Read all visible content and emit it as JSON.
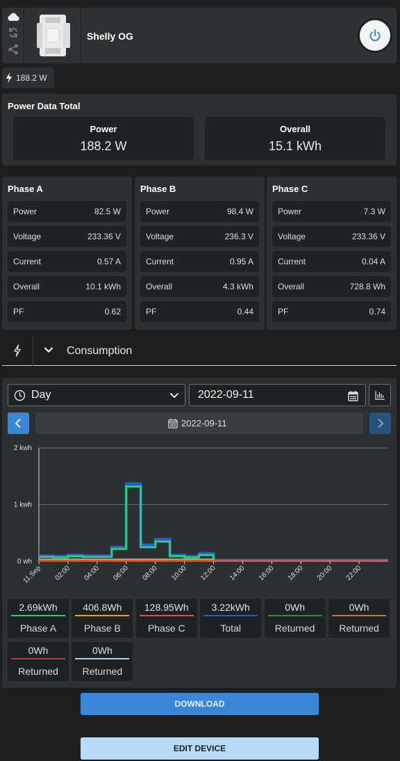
{
  "device": {
    "name": "Shelly OG",
    "power_badge": "188.2 W"
  },
  "total": {
    "title": "Power Data Total",
    "power_label": "Power",
    "power_value": "188.2 W",
    "overall_label": "Overall",
    "overall_value": "15.1 kWh"
  },
  "phases": [
    {
      "title": "Phase A",
      "rows": [
        {
          "label": "Power",
          "value": "82.5 W"
        },
        {
          "label": "Voltage",
          "value": "233.36 V"
        },
        {
          "label": "Current",
          "value": "0.57 A"
        },
        {
          "label": "Overall",
          "value": "10.1 kWh"
        },
        {
          "label": "PF",
          "value": "0.62"
        }
      ]
    },
    {
      "title": "Phase B",
      "rows": [
        {
          "label": "Power",
          "value": "98.4 W"
        },
        {
          "label": "Voltage",
          "value": "236.3 V"
        },
        {
          "label": "Current",
          "value": "0.95 A"
        },
        {
          "label": "Overall",
          "value": "4.3 kWh"
        },
        {
          "label": "PF",
          "value": "0.44"
        }
      ]
    },
    {
      "title": "Phase C",
      "rows": [
        {
          "label": "Power",
          "value": "7.3 W"
        },
        {
          "label": "Voltage",
          "value": "233.36 V"
        },
        {
          "label": "Current",
          "value": "0.04 A"
        },
        {
          "label": "Overall",
          "value": "728.8 Wh"
        },
        {
          "label": "PF",
          "value": "0.74"
        }
      ]
    }
  ],
  "consumption": {
    "label": "Consumption",
    "period_select": "Day",
    "date_input": "2022-09-11",
    "nav_date": "2022-09-11"
  },
  "colors": {
    "phase_a": "#2ecc71",
    "phase_b": "#f0a030",
    "phase_c": "#e74c3c",
    "total": "#1e5fd8",
    "returned_1": "#2c8c4a",
    "returned_2": "#c07a3a",
    "returned_3": "#b03a3a",
    "returned_4": "#a8d0f0",
    "accent": "#3a86d8"
  },
  "chart_data": {
    "type": "line",
    "y_tick_labels": [
      "2 kwh",
      "1 kwh",
      "0 wh"
    ],
    "x_tick_labels": [
      "11.Sep",
      "02:00",
      "04:00",
      "06:00",
      "08:00",
      "10:00",
      "12:00",
      "14:00",
      "16:00",
      "18:00",
      "20:00",
      "22:00"
    ],
    "ylim": [
      0,
      2
    ],
    "xlim": [
      0,
      24
    ],
    "step": true,
    "grid": true,
    "x": [
      0,
      1,
      2,
      3,
      4,
      5,
      6,
      7,
      8,
      9,
      10,
      11,
      12,
      13,
      14,
      15,
      16,
      17,
      18,
      19,
      20,
      21,
      22,
      23
    ],
    "series": [
      {
        "key": "total",
        "values": [
          0.1,
          0.09,
          0.11,
          0.1,
          0.1,
          0.25,
          1.37,
          0.29,
          0.39,
          0.11,
          0.09,
          0.14,
          0.02,
          0.02,
          0.02,
          0.02,
          0.02,
          0.02,
          0.02,
          0.02,
          0.02,
          0.02,
          0.02,
          0.02
        ]
      },
      {
        "key": "phase_a",
        "values": [
          0.08,
          0.07,
          0.09,
          0.08,
          0.08,
          0.22,
          1.32,
          0.25,
          0.35,
          0.09,
          0.07,
          0.11,
          0.01,
          0.01,
          0.01,
          0.01,
          0.01,
          0.01,
          0.01,
          0.01,
          0.01,
          0.01,
          0.01,
          0.01
        ]
      },
      {
        "key": "phase_b",
        "values": [
          0.03,
          0.03,
          0.03,
          0.03,
          0.03,
          0.03,
          0.03,
          0.03,
          0.03,
          0.03,
          0.03,
          0.03,
          0.01,
          0.01,
          0.01,
          0.01,
          0.01,
          0.01,
          0.01,
          0.01,
          0.01,
          0.01,
          0.01,
          0.01
        ]
      },
      {
        "key": "phase_c",
        "values": [
          0.01,
          0.01,
          0.01,
          0.01,
          0.01,
          0.01,
          0.01,
          0.01,
          0.01,
          0.01,
          0.01,
          0.01,
          0.01,
          0.01,
          0.01,
          0.01,
          0.01,
          0.01,
          0.01,
          0.01,
          0.01,
          0.01,
          0.01,
          0.01
        ]
      }
    ]
  },
  "legend": [
    {
      "value": "2.69kWh",
      "name": "Phase A",
      "color_key": "phase_a"
    },
    {
      "value": "406.8Wh",
      "name": "Phase B",
      "color_key": "phase_b"
    },
    {
      "value": "128.95Wh",
      "name": "Phase C",
      "color_key": "phase_c"
    },
    {
      "value": "3.22kWh",
      "name": "Total",
      "color_key": "total"
    },
    {
      "value": "0Wh",
      "name": "Returned",
      "color_key": "returned_1"
    },
    {
      "value": "0Wh",
      "name": "Returned",
      "color_key": "returned_2"
    },
    {
      "value": "0Wh",
      "name": "Returned",
      "color_key": "returned_3"
    },
    {
      "value": "0Wh",
      "name": "Returned",
      "color_key": "returned_4"
    }
  ],
  "buttons": {
    "download": "DOWNLOAD",
    "edit": "EDIT DEVICE"
  }
}
